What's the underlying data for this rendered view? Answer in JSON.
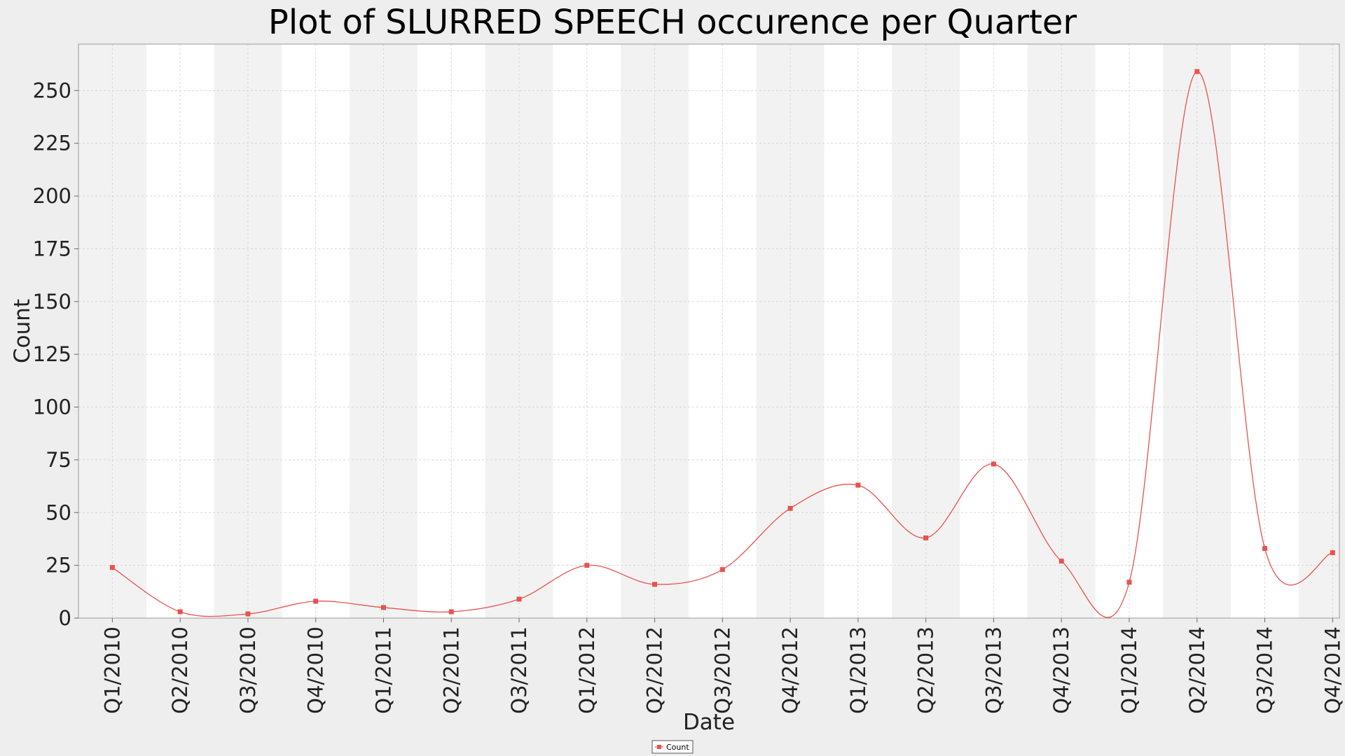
{
  "chart_data": {
    "type": "line",
    "title": "Plot of SLURRED SPEECH occurence per Quarter",
    "xlabel": "Date",
    "ylabel": "Count",
    "categories": [
      "Q1/2010",
      "Q2/2010",
      "Q3/2010",
      "Q4/2010",
      "Q1/2011",
      "Q2/2011",
      "Q3/2011",
      "Q1/2012",
      "Q2/2012",
      "Q3/2012",
      "Q4/2012",
      "Q1/2013",
      "Q2/2013",
      "Q3/2013",
      "Q4/2013",
      "Q1/2014",
      "Q2/2014",
      "Q3/2014",
      "Q4/2014"
    ],
    "series": [
      {
        "name": "Count",
        "values": [
          24,
          3,
          2,
          8,
          5,
          3,
          9,
          25,
          16,
          23,
          52,
          63,
          38,
          73,
          27,
          17,
          259,
          33,
          31
        ]
      }
    ],
    "ylim": [
      0,
      272
    ],
    "yticks": [
      0,
      25,
      50,
      75,
      100,
      125,
      150,
      175,
      200,
      225,
      250
    ],
    "grid": true,
    "smoothed": true,
    "legend_position": "bottom-center",
    "colors": {
      "series": "#e8524f",
      "band_light": "#f2f2f2",
      "band_white": "#ffffff",
      "background": "#eeeeee",
      "grid": "#d8d8d8"
    }
  }
}
